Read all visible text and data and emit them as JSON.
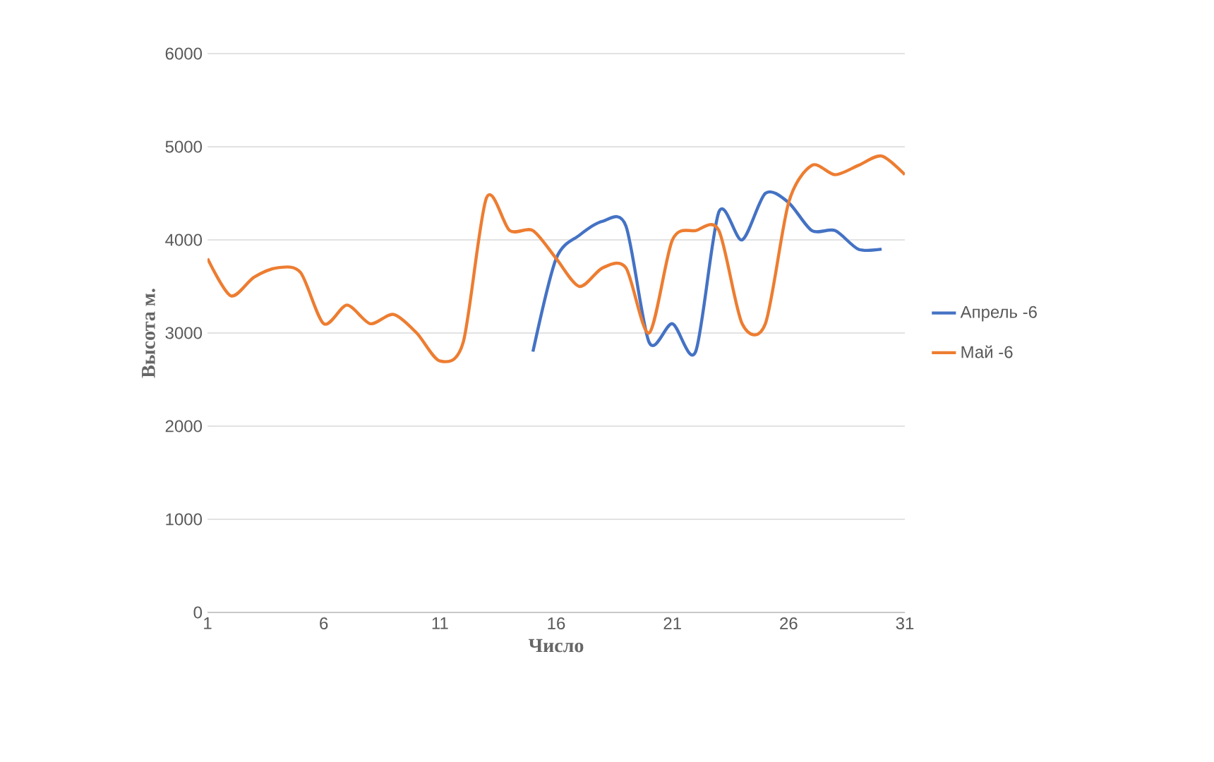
{
  "chart_data": {
    "type": "line",
    "xlabel": "Число",
    "ylabel": "Высота м.",
    "x": [
      1,
      2,
      3,
      4,
      5,
      6,
      7,
      8,
      9,
      10,
      11,
      12,
      13,
      14,
      15,
      16,
      17,
      18,
      19,
      20,
      21,
      22,
      23,
      24,
      25,
      26,
      27,
      28,
      29,
      30,
      31
    ],
    "series": [
      {
        "name": "Апрель -6",
        "color": "#4472c4",
        "x": [
          15,
          16,
          17,
          18,
          19,
          20,
          21,
          22,
          23,
          24,
          25,
          26,
          27,
          28,
          29,
          30
        ],
        "values": [
          2800,
          3800,
          4050,
          4200,
          4150,
          2900,
          3100,
          2800,
          4300,
          4000,
          4500,
          4400,
          4100,
          4100,
          3900,
          3900
        ]
      },
      {
        "name": "Май -6",
        "color": "#ed7d31",
        "values": [
          3800,
          3400,
          3600,
          3700,
          3650,
          3100,
          3300,
          3100,
          3200,
          3000,
          2700,
          2900,
          4450,
          4100,
          4100,
          3800,
          3500,
          3700,
          3700,
          3000,
          4000,
          4100,
          4100,
          3100,
          3100,
          4400,
          4800,
          4700,
          4800,
          4900,
          4700
        ]
      }
    ],
    "xlim": [
      1,
      31
    ],
    "xticks": [
      1,
      6,
      11,
      16,
      21,
      26,
      31
    ],
    "ylim": [
      0,
      6000
    ],
    "yticks": [
      0,
      1000,
      2000,
      3000,
      4000,
      5000,
      6000
    ],
    "grid": "y",
    "legend": "right",
    "marker": "none",
    "line_style": "solid"
  }
}
